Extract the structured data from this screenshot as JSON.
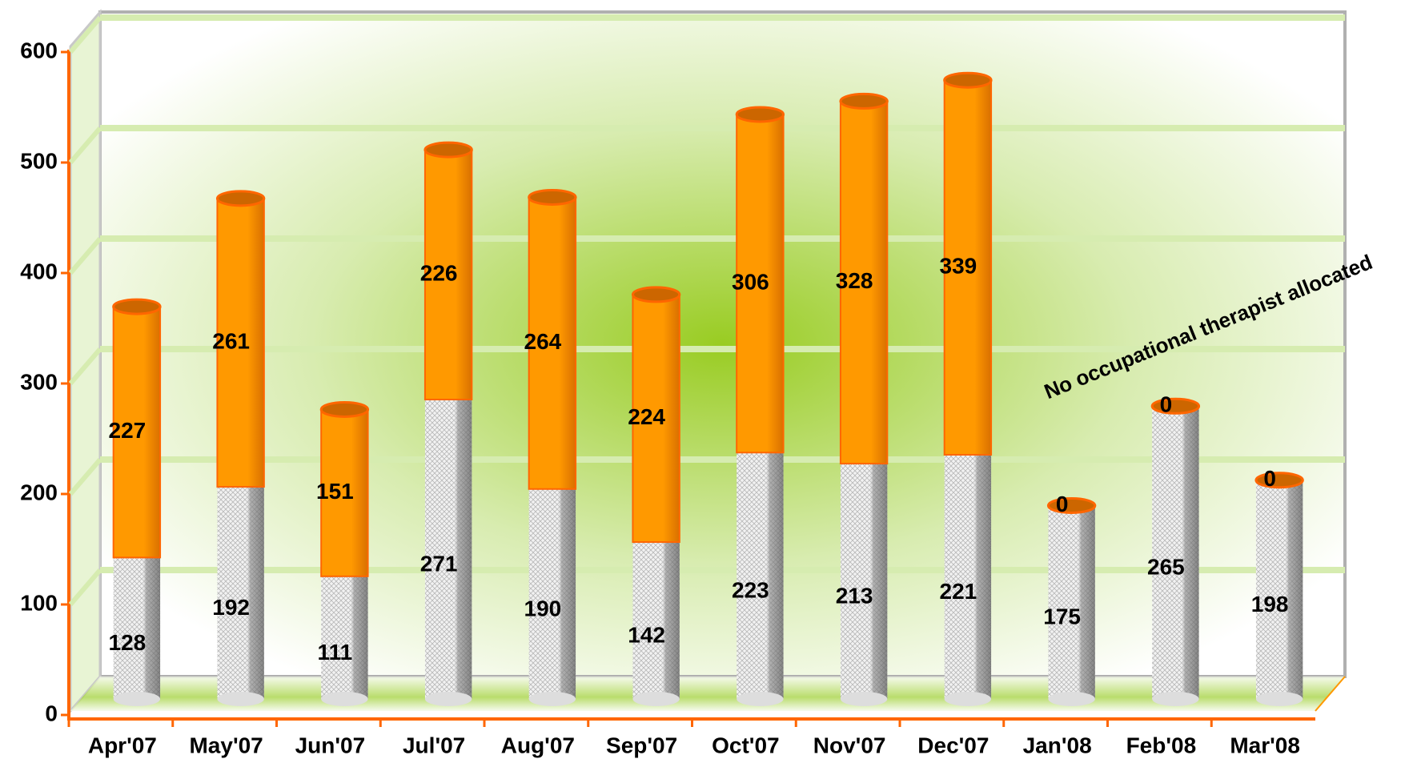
{
  "chart_data": {
    "type": "bar",
    "stacked": true,
    "categories": [
      "Apr'07",
      "May'07",
      "Jun'07",
      "Jul'07",
      "Aug'07",
      "Sep'07",
      "Oct'07",
      "Nov'07",
      "Dec'07",
      "Jan'08",
      "Feb'08",
      "Mar'08"
    ],
    "series": [
      {
        "color": "#e6e6e6",
        "values": [
          128,
          192,
          111,
          271,
          190,
          142,
          223,
          213,
          221,
          175,
          265,
          198
        ]
      },
      {
        "color": "#ff9900",
        "values": [
          227,
          261,
          151,
          226,
          264,
          224,
          306,
          328,
          339,
          0,
          0,
          0
        ]
      }
    ],
    "ylim": [
      0,
      600
    ],
    "yticks": [
      0,
      100,
      200,
      300,
      400,
      500,
      600
    ],
    "grid": true,
    "annotation": "No occupational therapist allocated"
  }
}
